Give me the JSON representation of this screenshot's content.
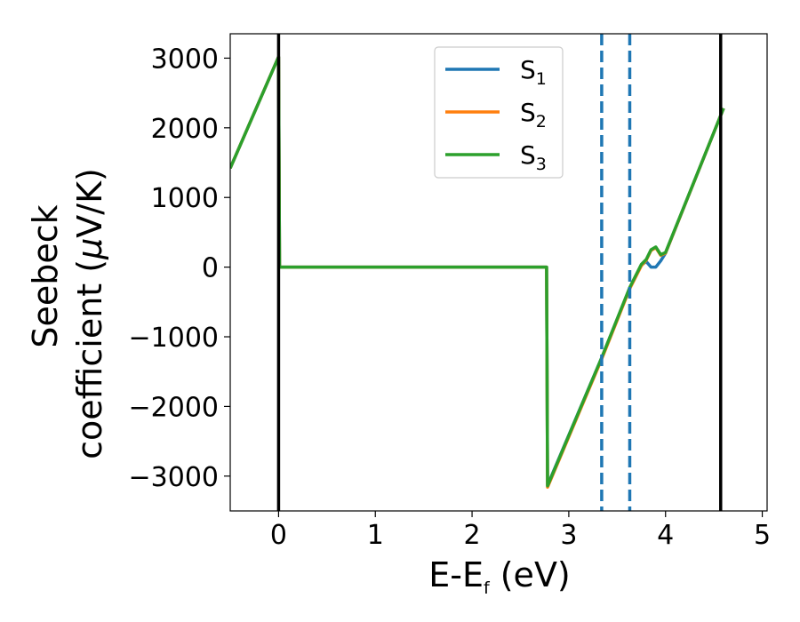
{
  "chart_data": {
    "type": "line",
    "xlabel": "E-E",
    "xlabel_sub": "f",
    "xlabel_unit": " (eV)",
    "ylabel_line1": "Seebeck",
    "ylabel_line2_pre": "coefficient  (",
    "ylabel_line2_mu": "μ",
    "ylabel_line2_post": "V/K)",
    "xlim": [
      -0.5,
      5.05
    ],
    "ylim": [
      -3500,
      3350
    ],
    "x_ticks": [
      0,
      1,
      2,
      3,
      4,
      5
    ],
    "x_tick_labels": [
      "0",
      "1",
      "2",
      "3",
      "4",
      "5"
    ],
    "y_ticks": [
      3000,
      2000,
      1000,
      0,
      -1000,
      -2000,
      -3000
    ],
    "y_tick_labels": [
      "3000",
      "2000",
      "1000",
      "0",
      "−1000",
      "−2000",
      "−3000"
    ],
    "grid": false,
    "legend_position": "top-center",
    "vlines_solid": [
      0.0,
      4.57
    ],
    "vlines_dashed": [
      3.34,
      3.63
    ],
    "series": [
      {
        "name": "S",
        "sub": "1",
        "color": "#1f77b4",
        "x": [
          -0.5,
          0.0,
          0.01,
          2.77,
          2.78,
          3.34,
          3.63,
          3.75,
          3.8,
          3.85,
          3.9,
          3.95,
          4.0,
          4.6
        ],
        "y": [
          1420,
          3020,
          0,
          0,
          -3130,
          -1300,
          -300,
          30,
          80,
          0,
          0,
          90,
          200,
          2280
        ]
      },
      {
        "name": "S",
        "sub": "2",
        "color": "#ff7f0e",
        "x": [
          -0.5,
          0.0,
          0.01,
          2.77,
          2.78,
          3.34,
          3.63,
          3.75,
          3.8,
          3.85,
          3.9,
          3.95,
          4.0,
          4.6
        ],
        "y": [
          1420,
          3020,
          0,
          0,
          -3160,
          -1320,
          -310,
          20,
          100,
          240,
          280,
          170,
          200,
          2280
        ]
      },
      {
        "name": "S",
        "sub": "3",
        "color": "#2ca02c",
        "x": [
          -0.5,
          0.0,
          0.01,
          2.77,
          2.78,
          3.34,
          3.63,
          3.75,
          3.8,
          3.85,
          3.9,
          3.95,
          4.0,
          4.6
        ],
        "y": [
          1420,
          3020,
          0,
          0,
          -3140,
          -1300,
          -290,
          40,
          110,
          250,
          290,
          180,
          210,
          2280
        ]
      }
    ]
  }
}
